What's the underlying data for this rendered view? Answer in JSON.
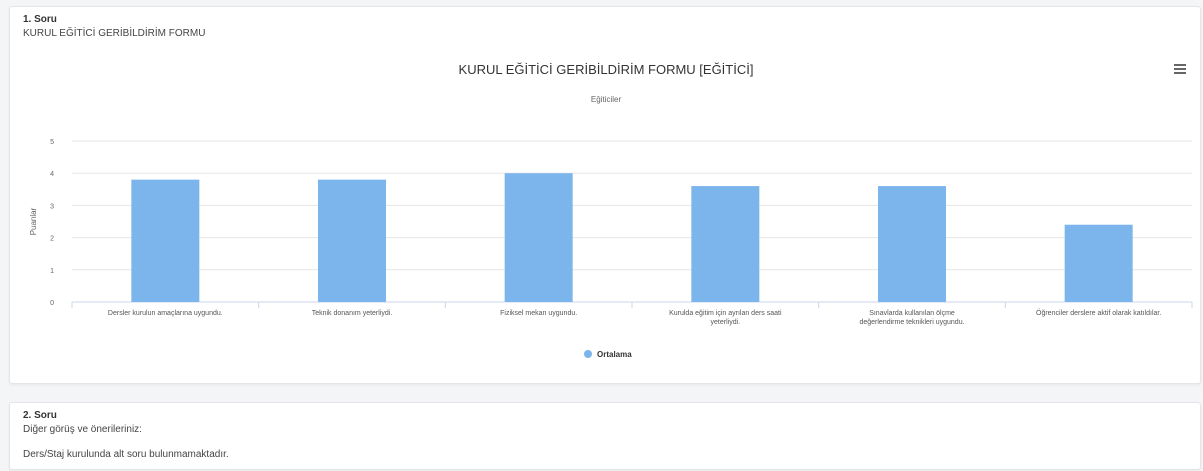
{
  "question1": {
    "number": "1. Soru",
    "text": "KURUL EĞİTİCİ GERİBİLDİRİM FORMU"
  },
  "question2": {
    "number": "2. Soru",
    "text": "Diğer görüş ve önerileriniz:",
    "note": "Ders/Staj kurulunda alt soru bulunmamaktadır."
  },
  "chart_data": {
    "type": "bar",
    "title": "KURUL EĞİTİCİ GERİBİLDİRİM FORMU [EĞİTİCİ]",
    "subtitle": "Eğiticiler",
    "ylabel": "Puanlar",
    "xlabel": "",
    "ylim": [
      0,
      5
    ],
    "yticks": [
      "0",
      "1",
      "2",
      "3",
      "4",
      "5"
    ],
    "categories": [
      [
        "Dersler kurulun amaçlarına uygundu."
      ],
      [
        "Teknik donanım yeterliydi."
      ],
      [
        "Fiziksel mekan uygundu."
      ],
      [
        "Kurulda eğitim için ayrılan ders saati",
        "yeterliydi."
      ],
      [
        "Sınavlarda kullanılan ölçme",
        "değerlendirme teknikleri uygundu."
      ],
      [
        "Öğrenciler derslere aktif olarak katıldılar."
      ]
    ],
    "series": [
      {
        "name": "Ortalama",
        "values": [
          3.8,
          3.8,
          4.0,
          3.6,
          3.6,
          2.4
        ]
      }
    ],
    "grid": true,
    "legend_position": "bottom-center",
    "bar_color": "#7cb5ec"
  }
}
